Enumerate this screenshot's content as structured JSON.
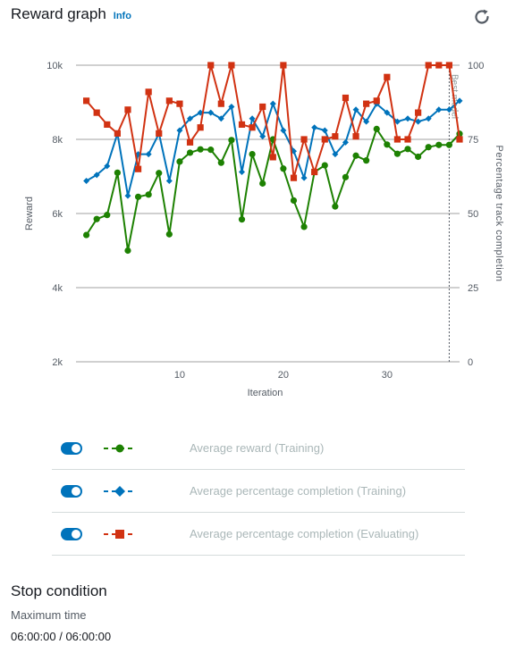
{
  "header": {
    "title": "Reward graph",
    "info_label": "Info"
  },
  "chart_data": {
    "type": "line",
    "x_label": "Iteration",
    "y_left_label": "Reward",
    "y_right_label": "Percentage track completion",
    "x_ticks": [
      10,
      20,
      30
    ],
    "x_range": [
      0,
      37
    ],
    "y_left_range": [
      2000,
      10000
    ],
    "y_left_ticks": [
      {
        "v": 2000,
        "label": "2k"
      },
      {
        "v": 4000,
        "label": "4k"
      },
      {
        "v": 6000,
        "label": "6k"
      },
      {
        "v": 8000,
        "label": "8k"
      },
      {
        "v": 10000,
        "label": "10k"
      }
    ],
    "y_right_range": [
      0,
      100
    ],
    "y_right_ticks": [
      {
        "v": 0,
        "label": "0"
      },
      {
        "v": 25,
        "label": "25"
      },
      {
        "v": 50,
        "label": "50"
      },
      {
        "v": 75,
        "label": "75"
      },
      {
        "v": 100,
        "label": "100"
      }
    ],
    "grid": true,
    "best_model": {
      "x": 36,
      "label": "Best model"
    },
    "series": [
      {
        "name": "Average reward (Training)",
        "axis": "left",
        "color": "#1d8102",
        "marker": "circle",
        "x": [
          1,
          2,
          3,
          4,
          5,
          6,
          7,
          8,
          9,
          10,
          11,
          12,
          13,
          14,
          15,
          16,
          17,
          18,
          19,
          20,
          21,
          22,
          23,
          24,
          25,
          26,
          27,
          28,
          29,
          30,
          31,
          32,
          33,
          34,
          35,
          36,
          37
        ],
        "y": [
          5420,
          5850,
          5960,
          7100,
          5000,
          6450,
          6510,
          7090,
          5440,
          7400,
          7640,
          7730,
          7720,
          7370,
          7980,
          5840,
          7600,
          6810,
          8000,
          7210,
          6350,
          5640,
          7120,
          7300,
          6190,
          6980,
          7560,
          7430,
          8280,
          7860,
          7610,
          7740,
          7530,
          7790,
          7850,
          7850,
          8150
        ]
      },
      {
        "name": "Average percentage completion (Training)",
        "axis": "right",
        "color": "#0073bb",
        "marker": "diamond",
        "x": [
          1,
          2,
          3,
          4,
          5,
          6,
          7,
          8,
          9,
          10,
          11,
          12,
          13,
          14,
          15,
          16,
          17,
          18,
          19,
          20,
          21,
          22,
          23,
          24,
          25,
          26,
          27,
          28,
          29,
          30,
          31,
          32,
          33,
          34,
          35,
          36,
          37
        ],
        "y": [
          61,
          63,
          66,
          77,
          56,
          70,
          70,
          77,
          61,
          78,
          82,
          84,
          84,
          82,
          86,
          64,
          82,
          76,
          87,
          78,
          71,
          62,
          79,
          78,
          70,
          74,
          85,
          81,
          87,
          84,
          81,
          82,
          81,
          82,
          85,
          85,
          88
        ]
      },
      {
        "name": "Average percentage completion (Evaluating)",
        "axis": "right",
        "color": "#d13212",
        "marker": "square",
        "x": [
          1,
          2,
          3,
          4,
          5,
          6,
          7,
          8,
          9,
          10,
          11,
          12,
          13,
          14,
          15,
          16,
          17,
          18,
          19,
          20,
          21,
          22,
          23,
          24,
          25,
          26,
          27,
          28,
          29,
          30,
          31,
          32,
          33,
          34,
          35,
          36,
          37
        ],
        "y": [
          88,
          84,
          80,
          77,
          85,
          65,
          91,
          77,
          88,
          87,
          74,
          79,
          100,
          87,
          100,
          80,
          79,
          86,
          69,
          100,
          62,
          75,
          64,
          75,
          76,
          89,
          76,
          87,
          88,
          96,
          75,
          75,
          84,
          100,
          100,
          100,
          75
        ]
      }
    ]
  },
  "legend": {
    "items": [
      {
        "label": "Average reward (Training)",
        "color": "#1d8102",
        "marker": "circle"
      },
      {
        "label": "Average percentage completion (Training)",
        "color": "#0073bb",
        "marker": "diamond"
      },
      {
        "label": "Average percentage completion (Evaluating)",
        "color": "#d13212",
        "marker": "square"
      }
    ]
  },
  "stop_condition": {
    "title": "Stop condition",
    "label": "Maximum time",
    "value": "06:00:00 / 06:00:00"
  }
}
